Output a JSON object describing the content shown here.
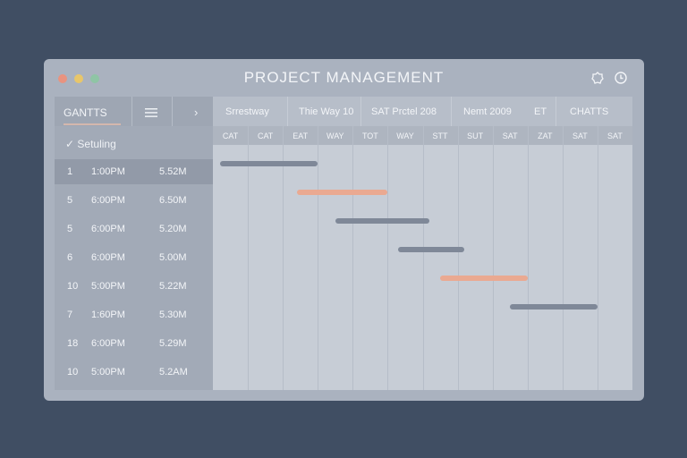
{
  "window": {
    "title": "PROJECT MANAGEMENT"
  },
  "colors": {
    "background": "#404e63",
    "window": "#aab2bf",
    "traffic_red": "#e9937f",
    "traffic_yellow": "#e8c66a",
    "traffic_green": "#8fc5a5",
    "bar_gray": "#7f8898",
    "bar_salmon": "#eaa991"
  },
  "sidebar": {
    "tab_label": "GANTTS",
    "menu_icon": "hamburger-icon",
    "chevron_label": "›",
    "section_label": "✓  Setuling",
    "rows": [
      {
        "num": "1",
        "time": "1:00PM",
        "dur": "5.52M"
      },
      {
        "num": "5",
        "time": "6:00PM",
        "dur": "6.50M"
      },
      {
        "num": "5",
        "time": "6:00PM",
        "dur": "5.20M"
      },
      {
        "num": "6",
        "time": "6:00PM",
        "dur": "5.00M"
      },
      {
        "num": "10",
        "time": "5:00PM",
        "dur": "5.22M"
      },
      {
        "num": "7",
        "time": "1:60PM",
        "dur": "5.30M"
      },
      {
        "num": "18",
        "time": "6:00PM",
        "dur": "5.29M"
      },
      {
        "num": "10",
        "time": "5:00PM",
        "dur": "5.2AM"
      }
    ]
  },
  "chart": {
    "headers": [
      "Srrestway",
      "Thie Way 10",
      "SAT Prctel 208",
      "Nemt 2009",
      "ET",
      "CHATTS"
    ],
    "days": [
      "CAT",
      "CAT",
      "EAT",
      "WAY",
      "TOT",
      "WAY",
      "STT",
      "SUT",
      "SAT",
      "ZAT",
      "SAT",
      "SAT"
    ]
  },
  "chart_data": {
    "type": "gantt",
    "tasks": [
      {
        "start": 0.2,
        "end": 3.0,
        "color": "gray"
      },
      {
        "start": 2.4,
        "end": 5.0,
        "color": "salmon"
      },
      {
        "start": 3.5,
        "end": 6.2,
        "color": "gray"
      },
      {
        "start": 5.3,
        "end": 7.2,
        "color": "gray"
      },
      {
        "start": 6.5,
        "end": 9.0,
        "color": "salmon"
      },
      {
        "start": 8.5,
        "end": 11.0,
        "color": "gray"
      }
    ],
    "columns": 12
  }
}
